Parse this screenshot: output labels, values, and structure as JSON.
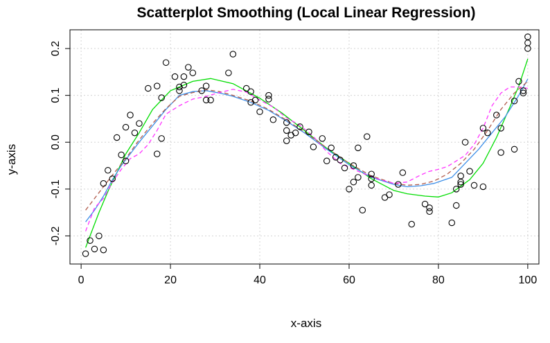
{
  "chart_data": {
    "type": "scatter",
    "title": "Scatterplot Smoothing (Local Linear Regression)",
    "xlabel": "x-axis",
    "ylabel": "y-axis",
    "xlim": [
      -2.5,
      102.5
    ],
    "ylim": [
      -0.26,
      0.24
    ],
    "x_ticks": [
      0,
      20,
      40,
      60,
      80,
      100
    ],
    "x_tick_labels": [
      "0",
      "20",
      "40",
      "60",
      "80",
      "100"
    ],
    "y_ticks": [
      -0.2,
      -0.1,
      0.0,
      0.1,
      0.2
    ],
    "y_tick_labels": [
      "-0.2",
      "-0.1",
      "0.0",
      "0.1",
      "0.2"
    ],
    "grid": true,
    "points": {
      "x": [
        1,
        2,
        3,
        4,
        5,
        5,
        6,
        7,
        8,
        9,
        10,
        10,
        11,
        12,
        13,
        15,
        17,
        17,
        18,
        18,
        19,
        21,
        22,
        22,
        23,
        23,
        24,
        25,
        27,
        28,
        28,
        29,
        33,
        34,
        37,
        38,
        38,
        39,
        40,
        42,
        42,
        43,
        46,
        46,
        46,
        47,
        48,
        49,
        51,
        52,
        54,
        55,
        56,
        57,
        58,
        59,
        60,
        61,
        61,
        62,
        62,
        63,
        64,
        65,
        65,
        65,
        68,
        69,
        71,
        72,
        74,
        77,
        78,
        78,
        83,
        84,
        84,
        85,
        85,
        85,
        86,
        87,
        88,
        90,
        90,
        91,
        93,
        94,
        94,
        97,
        97,
        98,
        99,
        99,
        100,
        100,
        100
      ],
      "y": [
        -0.238,
        -0.21,
        -0.228,
        -0.2,
        -0.088,
        -0.23,
        -0.06,
        -0.078,
        0.01,
        -0.027,
        0.032,
        -0.04,
        0.058,
        0.02,
        0.04,
        0.115,
        -0.025,
        0.12,
        0.008,
        0.095,
        0.17,
        0.14,
        0.11,
        0.118,
        0.14,
        0.122,
        0.16,
        0.148,
        0.11,
        0.09,
        0.12,
        0.09,
        0.148,
        0.188,
        0.115,
        0.085,
        0.108,
        0.09,
        0.065,
        0.1,
        0.092,
        0.048,
        0.042,
        0.025,
        0.003,
        0.015,
        0.02,
        0.033,
        0.022,
        -0.01,
        0.008,
        -0.04,
        -0.012,
        -0.032,
        -0.038,
        -0.055,
        -0.1,
        -0.05,
        -0.085,
        -0.012,
        -0.075,
        -0.145,
        0.012,
        -0.068,
        -0.078,
        -0.092,
        -0.118,
        -0.112,
        -0.09,
        -0.065,
        -0.175,
        -0.132,
        -0.14,
        -0.148,
        -0.172,
        -0.135,
        -0.1,
        -0.072,
        -0.085,
        -0.09,
        0.0,
        -0.062,
        -0.092,
        0.03,
        -0.095,
        0.02,
        0.058,
        0.03,
        -0.022,
        -0.015,
        0.088,
        0.13,
        0.105,
        0.11,
        0.2,
        0.212,
        0.225
      ]
    },
    "series": [
      {
        "color": "#00dd00",
        "dash": "solid",
        "x": [
          1,
          2,
          4,
          6,
          8,
          10,
          13,
          16,
          20,
          25,
          29,
          34,
          40,
          45,
          50,
          55,
          60,
          65,
          70,
          73,
          77,
          80,
          83,
          87,
          90,
          93,
          96,
          98,
          100
        ],
        "y": [
          -0.225,
          -0.2,
          -0.15,
          -0.105,
          -0.065,
          -0.025,
          0.02,
          0.07,
          0.11,
          0.13,
          0.136,
          0.125,
          0.094,
          0.062,
          0.025,
          -0.013,
          -0.045,
          -0.078,
          -0.103,
          -0.11,
          -0.115,
          -0.117,
          -0.108,
          -0.08,
          -0.045,
          0.01,
          0.075,
          0.12,
          0.178
        ]
      },
      {
        "color": "#3d8fe8",
        "dash": "solid",
        "x": [
          1,
          3,
          5,
          7,
          9,
          11,
          13,
          16,
          19,
          22,
          25,
          28,
          31,
          34,
          38,
          42,
          46,
          50,
          55,
          60,
          65,
          70,
          73,
          76,
          79,
          83,
          86,
          89,
          92,
          95,
          98,
          100
        ],
        "y": [
          -0.17,
          -0.145,
          -0.115,
          -0.08,
          -0.05,
          -0.025,
          0.0,
          0.035,
          0.07,
          0.1,
          0.108,
          0.11,
          0.105,
          0.098,
          0.085,
          0.068,
          0.045,
          0.02,
          -0.015,
          -0.048,
          -0.075,
          -0.09,
          -0.095,
          -0.093,
          -0.088,
          -0.075,
          -0.045,
          -0.015,
          0.02,
          0.055,
          0.1,
          0.135
        ]
      },
      {
        "color": "#b05a4a",
        "dash": "dashed",
        "x": [
          1,
          3,
          5,
          7,
          10,
          13,
          16,
          19,
          22,
          25,
          28,
          31,
          34,
          38,
          42,
          46,
          50,
          55,
          60,
          65,
          70,
          73,
          76,
          79,
          82,
          85,
          88,
          91,
          94,
          97,
          100
        ],
        "y": [
          -0.145,
          -0.12,
          -0.095,
          -0.07,
          -0.035,
          0.005,
          0.04,
          0.072,
          0.098,
          0.106,
          0.112,
          0.108,
          0.1,
          0.088,
          0.07,
          0.047,
          0.022,
          -0.012,
          -0.045,
          -0.072,
          -0.088,
          -0.092,
          -0.09,
          -0.083,
          -0.068,
          -0.045,
          -0.015,
          0.025,
          0.07,
          0.105,
          0.13
        ]
      },
      {
        "color": "#ff33ff",
        "dash": "dashed",
        "x": [
          1,
          2,
          3,
          5,
          7,
          9,
          11,
          13,
          15,
          17,
          19,
          22,
          25,
          28,
          31,
          34,
          37,
          40,
          43,
          46,
          49,
          52,
          55,
          58,
          61,
          64,
          67,
          70,
          73,
          76,
          78,
          80,
          82,
          84,
          86,
          88,
          90,
          92,
          94,
          96,
          98,
          100
        ],
        "y": [
          -0.19,
          -0.165,
          -0.14,
          -0.12,
          -0.085,
          -0.058,
          -0.035,
          -0.025,
          -0.005,
          0.025,
          0.06,
          0.078,
          0.092,
          0.098,
          0.106,
          0.113,
          0.107,
          0.09,
          0.075,
          0.052,
          0.036,
          0.012,
          -0.02,
          -0.045,
          -0.058,
          -0.07,
          -0.08,
          -0.088,
          -0.085,
          -0.07,
          -0.062,
          -0.058,
          -0.052,
          -0.04,
          -0.028,
          -0.005,
          0.03,
          0.078,
          0.105,
          0.118,
          0.118,
          0.115
        ]
      }
    ]
  }
}
